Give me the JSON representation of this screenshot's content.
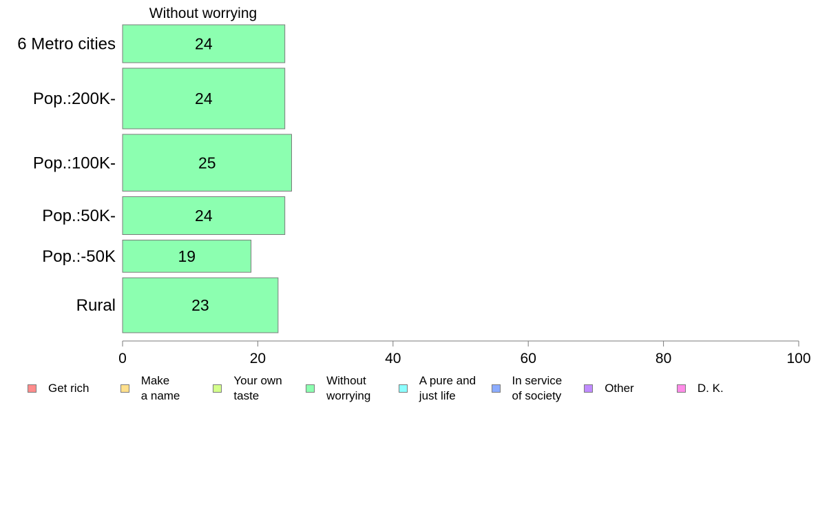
{
  "chart_data": {
    "type": "bar",
    "orientation": "horizontal",
    "title": "Without worrying",
    "categories": [
      "6 Metro cities",
      "Pop.:200K-",
      "Pop.:100K-",
      "Pop.:50K-",
      "Pop.:-50K",
      "Rural"
    ],
    "series": [
      {
        "name": "Without worrying",
        "values": [
          24,
          24,
          25,
          24,
          19,
          23
        ],
        "color": "#8cffb0"
      }
    ],
    "data_labels": [
      "24",
      "24",
      "25",
      "24",
      "19",
      "23"
    ],
    "xlim": [
      0,
      100
    ],
    "xticks": [
      0,
      20,
      40,
      60,
      80,
      100
    ],
    "xtick_labels": [
      "0",
      "20",
      "40",
      "60",
      "80",
      "100"
    ],
    "category_weights": [
      1.0,
      1.6,
      1.5,
      1.0,
      0.85,
      1.45
    ],
    "grid": false,
    "legend_position": "bottom",
    "legend": [
      {
        "label": "Get rich",
        "color": "#ff8c8c"
      },
      {
        "label": "Make\na name",
        "color": "#ffe08c"
      },
      {
        "label": "Your own\ntaste",
        "color": "#d4ff8c"
      },
      {
        "label": "Without\nworrying",
        "color": "#8cffb0"
      },
      {
        "label": "A pure and\njust life",
        "color": "#8cffff"
      },
      {
        "label": "In service\nof society",
        "color": "#8cacff"
      },
      {
        "label": "Other",
        "color": "#c08cff"
      },
      {
        "label": "D. K.",
        "color": "#ff8ce8"
      }
    ]
  }
}
